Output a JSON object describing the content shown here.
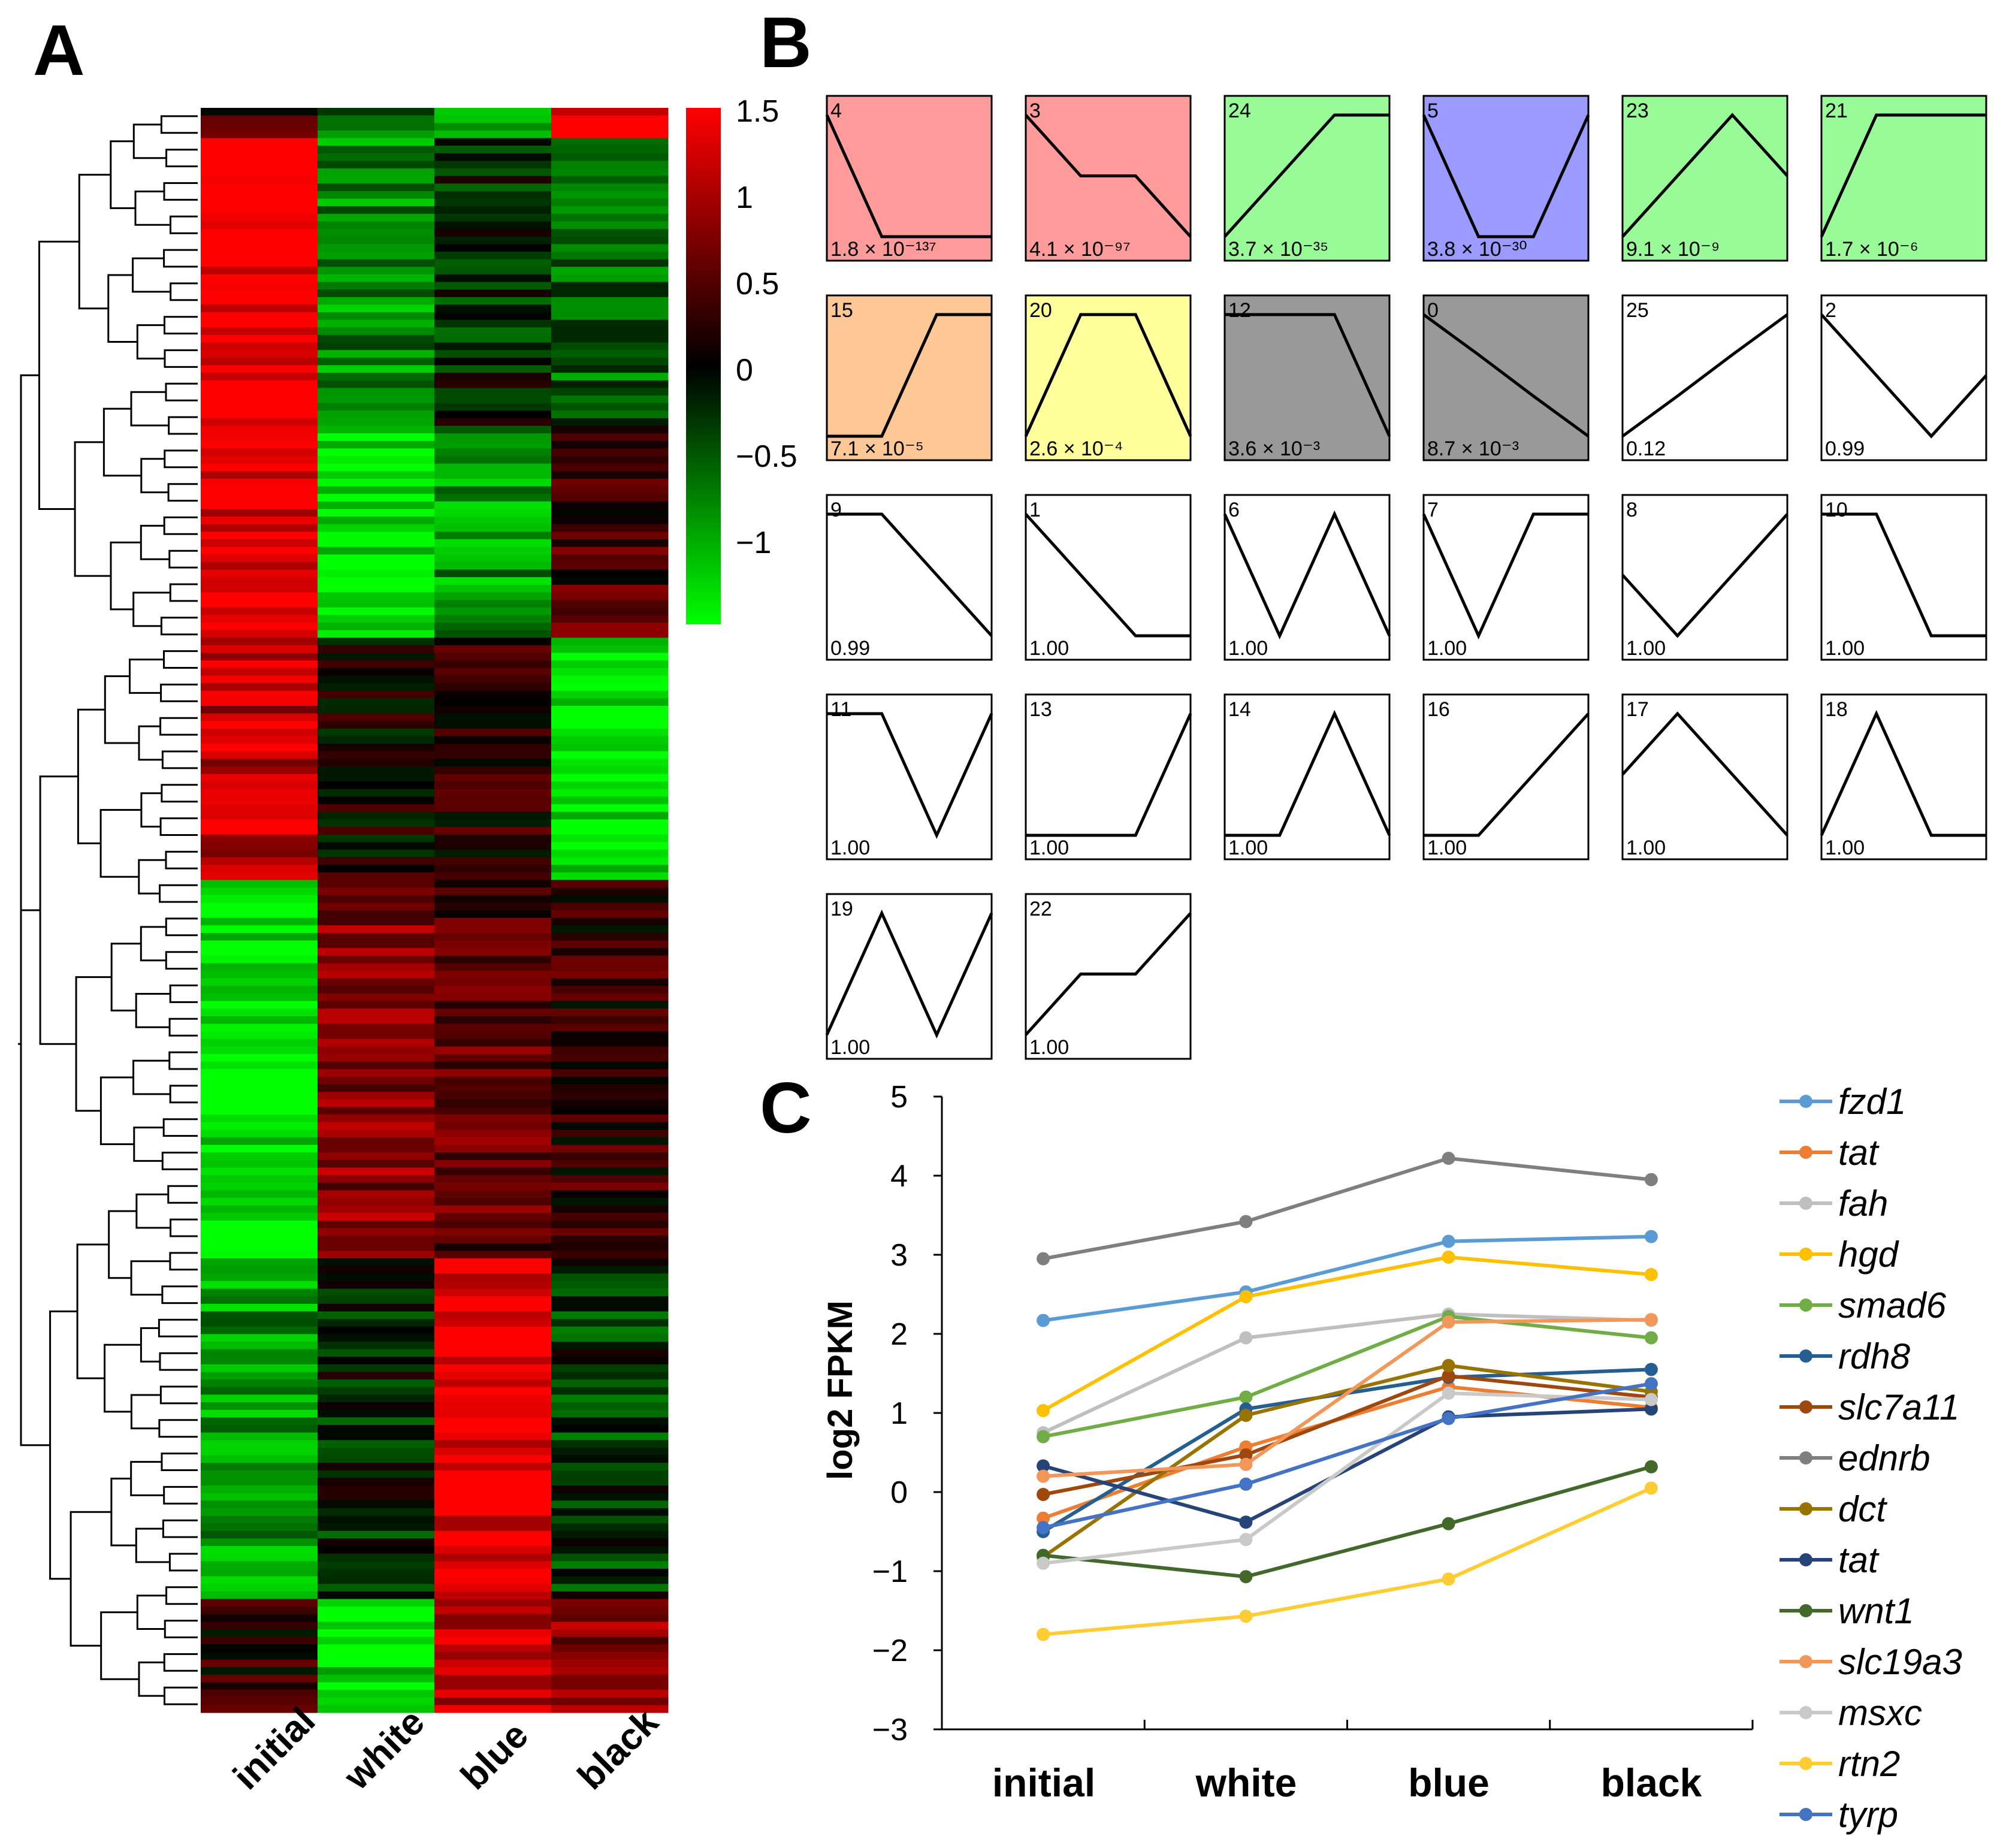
{
  "panel_labels": {
    "a": "A",
    "b": "B",
    "c": "C"
  },
  "chart_data": [
    {
      "type": "heatmap",
      "panel": "A",
      "columns": [
        "initial",
        "white",
        "blue",
        "black"
      ],
      "colorbar": {
        "ticks": [
          "1.5",
          "1",
          "0.5",
          "0",
          "−0.5",
          "−1"
        ],
        "tick_values": [
          1.5,
          1,
          0.5,
          0,
          -0.5,
          -1
        ],
        "range": [
          -1.5,
          1.5
        ],
        "low_color": "#00ff00",
        "mid_color": "#000000",
        "high_color": "#ff0000"
      },
      "row_blocks": [
        {
          "rows": 4,
          "values": [
            0.4,
            -0.7,
            -1.0,
            1.4
          ]
        },
        {
          "rows": 38,
          "values": [
            1.5,
            -0.8,
            -0.2,
            -0.6
          ]
        },
        {
          "rows": 28,
          "values": [
            1.3,
            -1.4,
            -0.9,
            0.4
          ]
        },
        {
          "rows": 32,
          "values": [
            1.1,
            0.1,
            0.2,
            -1.4
          ]
        },
        {
          "rows": 50,
          "values": [
            -1.4,
            0.8,
            0.5,
            0.3
          ]
        },
        {
          "rows": 45,
          "values": [
            -0.9,
            -0.2,
            1.4,
            -0.3
          ]
        },
        {
          "rows": 15,
          "values": [
            0.2,
            -1.3,
            1.2,
            0.8
          ]
        }
      ]
    },
    {
      "type": "profile_grid",
      "panel": "B",
      "profiles": [
        {
          "id": "4",
          "pvalue": "1.8 × 10⁻¹³⁷",
          "color": "#ff9b9b",
          "shape": [
            1,
            0,
            0,
            0
          ]
        },
        {
          "id": "3",
          "pvalue": "4.1 × 10⁻⁹⁷",
          "color": "#ff9b9b",
          "shape": [
            1,
            0.5,
            0.5,
            0
          ]
        },
        {
          "id": "24",
          "pvalue": "3.7 × 10⁻³⁵",
          "color": "#98fb98",
          "shape": [
            0,
            0.5,
            1,
            1
          ]
        },
        {
          "id": "5",
          "pvalue": "3.8 × 10⁻³⁰",
          "color": "#9b9bff",
          "shape": [
            1,
            0,
            0,
            1
          ]
        },
        {
          "id": "23",
          "pvalue": "9.1 × 10⁻⁹",
          "color": "#98fb98",
          "shape": [
            0,
            0.5,
            1,
            0.5
          ]
        },
        {
          "id": "21",
          "pvalue": "1.7 × 10⁻⁶",
          "color": "#98fb98",
          "shape": [
            0,
            1,
            1,
            1
          ]
        },
        {
          "id": "15",
          "pvalue": "7.1 × 10⁻⁵",
          "color": "#fdc896",
          "shape": [
            0,
            0,
            1,
            1
          ]
        },
        {
          "id": "20",
          "pvalue": "2.6 × 10⁻⁴",
          "color": "#ffff9b",
          "shape": [
            0,
            1,
            1,
            0
          ]
        },
        {
          "id": "12",
          "pvalue": "3.6 × 10⁻³",
          "color": "#999999",
          "shape": [
            1,
            1,
            1,
            0
          ]
        },
        {
          "id": "0",
          "pvalue": "8.7 × 10⁻³",
          "color": "#999999",
          "shape": [
            1,
            0.67,
            0.33,
            0
          ]
        },
        {
          "id": "25",
          "pvalue": "0.12",
          "color": "#ffffff",
          "shape": [
            0,
            0.33,
            0.67,
            1
          ]
        },
        {
          "id": "2",
          "pvalue": "0.99",
          "color": "#ffffff",
          "shape": [
            1,
            0.5,
            0,
            0.5
          ]
        },
        {
          "id": "9",
          "pvalue": "0.99",
          "color": "#ffffff",
          "shape": [
            1,
            1,
            0.5,
            0
          ]
        },
        {
          "id": "1",
          "pvalue": "1.00",
          "color": "#ffffff",
          "shape": [
            1,
            0.5,
            0,
            0
          ]
        },
        {
          "id": "6",
          "pvalue": "1.00",
          "color": "#ffffff",
          "shape": [
            1,
            0,
            1,
            0
          ]
        },
        {
          "id": "7",
          "pvalue": "1.00",
          "color": "#ffffff",
          "shape": [
            1,
            0,
            1,
            1
          ]
        },
        {
          "id": "8",
          "pvalue": "1.00",
          "color": "#ffffff",
          "shape": [
            0.5,
            0,
            0.5,
            1
          ]
        },
        {
          "id": "10",
          "pvalue": "1.00",
          "color": "#ffffff",
          "shape": [
            1,
            1,
            0,
            0
          ]
        },
        {
          "id": "11",
          "pvalue": "1.00",
          "color": "#ffffff",
          "shape": [
            1,
            1,
            0,
            1
          ]
        },
        {
          "id": "13",
          "pvalue": "1.00",
          "color": "#ffffff",
          "shape": [
            0,
            0,
            0,
            1
          ]
        },
        {
          "id": "14",
          "pvalue": "1.00",
          "color": "#ffffff",
          "shape": [
            0,
            0,
            1,
            0
          ]
        },
        {
          "id": "16",
          "pvalue": "1.00",
          "color": "#ffffff",
          "shape": [
            0,
            0,
            0.5,
            1
          ]
        },
        {
          "id": "17",
          "pvalue": "1.00",
          "color": "#ffffff",
          "shape": [
            0.5,
            1,
            0.5,
            0
          ]
        },
        {
          "id": "18",
          "pvalue": "1.00",
          "color": "#ffffff",
          "shape": [
            0,
            1,
            0,
            0
          ]
        },
        {
          "id": "19",
          "pvalue": "1.00",
          "color": "#ffffff",
          "shape": [
            0,
            1,
            0,
            1
          ]
        },
        {
          "id": "22",
          "pvalue": "1.00",
          "color": "#ffffff",
          "shape": [
            0,
            0.5,
            0.5,
            1
          ]
        }
      ]
    },
    {
      "type": "line",
      "panel": "C",
      "categories": [
        "initial",
        "white",
        "blue",
        "black"
      ],
      "ylabel": "log2 FPKM",
      "ylim": [
        -3,
        5
      ],
      "yticks": [
        "5",
        "4",
        "3",
        "2",
        "1",
        "0",
        "−1",
        "−2",
        "−3"
      ],
      "ytick_values": [
        5,
        4,
        3,
        2,
        1,
        0,
        -1,
        -2,
        -3
      ],
      "legend_position": "right",
      "series": [
        {
          "name": "fzd1",
          "color": "#5b9bd5",
          "values": [
            2.17,
            2.53,
            3.17,
            3.23
          ]
        },
        {
          "name": "tat",
          "color": "#ed7d31",
          "values": [
            -0.33,
            0.57,
            1.33,
            1.07
          ]
        },
        {
          "name": "fah",
          "color": "#bfbfbf",
          "values": [
            0.75,
            1.95,
            2.25,
            2.17
          ]
        },
        {
          "name": "hgd",
          "color": "#ffc000",
          "values": [
            1.03,
            2.47,
            2.97,
            2.75
          ]
        },
        {
          "name": "smad6",
          "color": "#70ad47",
          "values": [
            0.7,
            1.2,
            2.22,
            1.95
          ]
        },
        {
          "name": "rdh8",
          "color": "#255e91",
          "values": [
            -0.5,
            1.05,
            1.45,
            1.55
          ]
        },
        {
          "name": "slc7a11",
          "color": "#9e480e",
          "values": [
            -0.03,
            0.47,
            1.47,
            1.2
          ]
        },
        {
          "name": "ednrb",
          "color": "#7f7f7f",
          "values": [
            2.95,
            3.42,
            4.22,
            3.95
          ]
        },
        {
          "name": "dct",
          "color": "#997300",
          "values": [
            -0.82,
            0.97,
            1.6,
            1.27
          ]
        },
        {
          "name": "tat",
          "color": "#264478",
          "values": [
            0.33,
            -0.38,
            0.95,
            1.05
          ]
        },
        {
          "name": "wnt1",
          "color": "#43682b",
          "values": [
            -0.8,
            -1.07,
            -0.4,
            0.32
          ]
        },
        {
          "name": "slc19a3",
          "color": "#f1975a",
          "values": [
            0.2,
            0.35,
            2.15,
            2.18
          ]
        },
        {
          "name": "msxc",
          "color": "#c9c9c9",
          "values": [
            -0.9,
            -0.6,
            1.25,
            1.17
          ]
        },
        {
          "name": "rtn2",
          "color": "#ffcd33",
          "values": [
            -1.8,
            -1.57,
            -1.1,
            0.05
          ]
        },
        {
          "name": "tyrp",
          "color": "#4472c4",
          "values": [
            -0.45,
            0.1,
            0.93,
            1.37
          ]
        }
      ]
    }
  ]
}
